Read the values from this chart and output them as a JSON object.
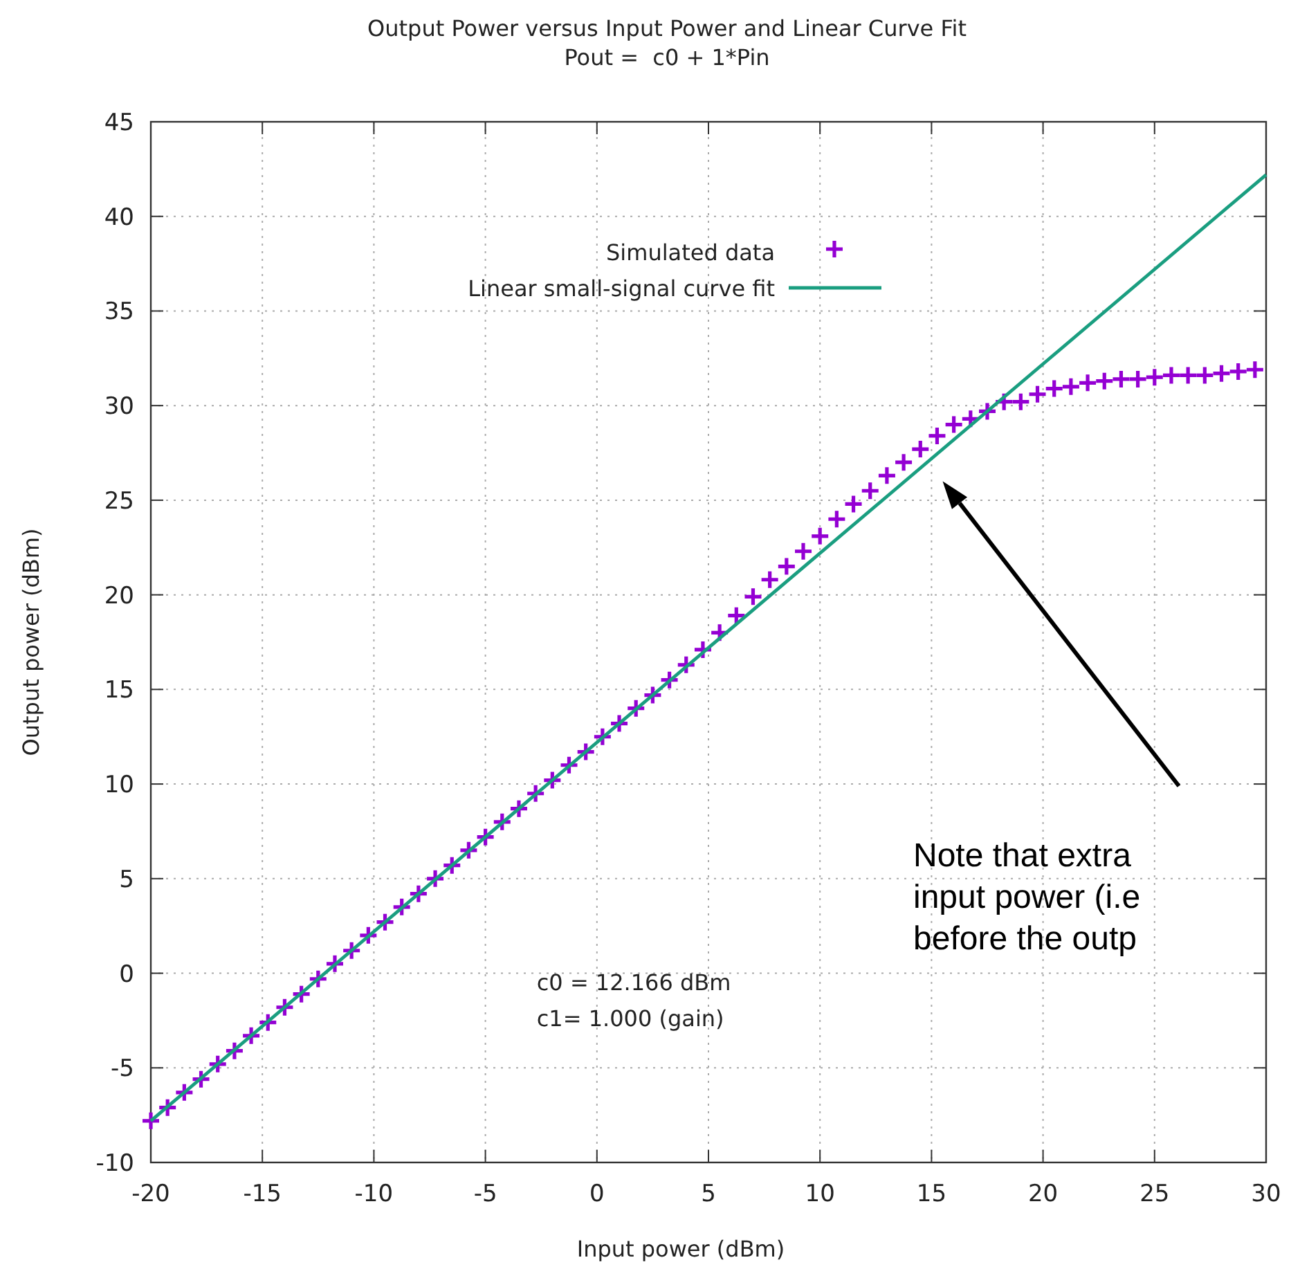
{
  "chart_data": {
    "type": "scatter",
    "title": "Output Power versus Input Power and Linear Curve Fit",
    "subtitle": "Pout =  c0 + 1*Pin",
    "xlabel": "Input power (dBm)",
    "ylabel": "Output power (dBm)",
    "xlim": [
      -20,
      30
    ],
    "ylim": [
      -10,
      45
    ],
    "xticks": [
      -20,
      -15,
      -10,
      -5,
      0,
      5,
      10,
      15,
      20,
      25,
      30
    ],
    "yticks": [
      -10,
      -5,
      0,
      5,
      10,
      15,
      20,
      25,
      30,
      35,
      40,
      45
    ],
    "grid": true,
    "legend": "top",
    "series": [
      {
        "name": "Simulated data",
        "marker": "cross",
        "color": "#9400d3",
        "x": [
          -20,
          -19.25,
          -18.5,
          -17.75,
          -17,
          -16.25,
          -15.5,
          -14.75,
          -14,
          -13.25,
          -12.5,
          -11.75,
          -11,
          -10.25,
          -9.5,
          -8.75,
          -8,
          -7.25,
          -6.5,
          -5.75,
          -5,
          -4.25,
          -3.5,
          -2.75,
          -2,
          -1.25,
          -0.5,
          0.25,
          1,
          1.75,
          2.5,
          3.25,
          4,
          4.75,
          5.5,
          6.25,
          7,
          7.75,
          8.5,
          9.25,
          10,
          10.75,
          11.5,
          12.25,
          13,
          13.75,
          14.5,
          15.25,
          16,
          16.75,
          17.5,
          18.25,
          19,
          19.75,
          20.5,
          21.25,
          22,
          22.75,
          23.5,
          24.25,
          25,
          25.75,
          26.5,
          27.25,
          28,
          28.75,
          29.5
        ],
        "values": [
          -7.8,
          -7.1,
          -6.3,
          -5.6,
          -4.8,
          -4.1,
          -3.3,
          -2.6,
          -1.8,
          -1.1,
          -0.3,
          0.5,
          1.2,
          2.0,
          2.7,
          3.5,
          4.2,
          5.0,
          5.7,
          6.5,
          7.2,
          8.0,
          8.7,
          9.5,
          10.2,
          11.0,
          11.7,
          12.5,
          13.2,
          14.0,
          14.7,
          15.5,
          16.3,
          17.1,
          18.0,
          18.9,
          19.9,
          20.8,
          21.5,
          22.3,
          23.1,
          24.0,
          24.8,
          25.5,
          26.3,
          27.0,
          27.7,
          28.4,
          29.0,
          29.3,
          29.7,
          30.2,
          30.2,
          30.6,
          30.9,
          31.0,
          31.2,
          31.3,
          31.4,
          31.4,
          31.5,
          31.6,
          31.6,
          31.6,
          31.7,
          31.8,
          31.9
        ]
      },
      {
        "name": "Linear small-signal curve fit",
        "type": "line",
        "marker": "none",
        "line_style": "solid",
        "color": "#1a9e80",
        "x": [
          -20,
          30
        ],
        "values": [
          -7.8,
          42.2
        ]
      }
    ],
    "annotations": [
      "c0 = 12.166 dBm",
      "c1= 1.000 (gain)",
      "Note that extra\ninput power (i.e\nbefore the outp"
    ]
  }
}
